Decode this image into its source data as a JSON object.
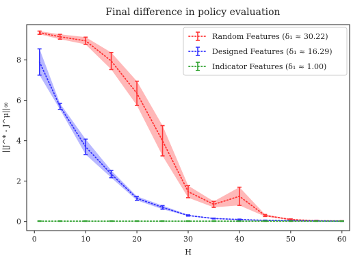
{
  "chart_data": {
    "type": "line",
    "title": "Final difference in policy evaluation",
    "xlabel": "H",
    "ylabel": "||J^* - J^μ||∞",
    "xlim": [
      -1.5,
      61.5
    ],
    "ylim": [
      -0.45,
      9.75
    ],
    "xticks": [
      0,
      10,
      20,
      30,
      40,
      50,
      60
    ],
    "yticks": [
      0,
      2,
      4,
      6,
      8
    ],
    "grid": false,
    "legend_position": "top-right",
    "x": [
      1,
      5,
      10,
      15,
      20,
      25,
      30,
      35,
      40,
      45,
      50,
      55,
      60
    ],
    "series": [
      {
        "name": "Random Features (δ₁ ≈ 30.22)",
        "color": "#ff3333",
        "values": [
          9.35,
          9.15,
          8.95,
          7.95,
          6.35,
          4.0,
          1.48,
          0.85,
          1.25,
          0.3,
          0.1,
          0.04,
          0.03
        ],
        "err": [
          0.08,
          0.12,
          0.18,
          0.42,
          0.6,
          0.75,
          0.3,
          0.15,
          0.45,
          0.05,
          0.03,
          0.02,
          0.01
        ]
      },
      {
        "name": "Designed Features (δ₁ ≈ 16.29)",
        "color": "#3333ff",
        "values": [
          7.9,
          5.7,
          3.7,
          2.35,
          1.15,
          0.7,
          0.3,
          0.15,
          0.1,
          0.06,
          0.04,
          0.03,
          0.02
        ],
        "err": [
          0.65,
          0.15,
          0.38,
          0.18,
          0.1,
          0.09,
          0.03,
          0.02,
          0.02,
          0.01,
          0.01,
          0.01,
          0.01
        ]
      },
      {
        "name": "Indicator Features (δ₁ ≈ 1.00)",
        "color": "#2ca02c",
        "values": [
          0.02,
          0.02,
          0.02,
          0.02,
          0.02,
          0.02,
          0.02,
          0.02,
          0.02,
          0.02,
          0.02,
          0.02,
          0.02
        ],
        "err": [
          0.01,
          0.01,
          0.01,
          0.01,
          0.01,
          0.01,
          0.01,
          0.01,
          0.01,
          0.01,
          0.01,
          0.01,
          0.01
        ]
      }
    ]
  }
}
